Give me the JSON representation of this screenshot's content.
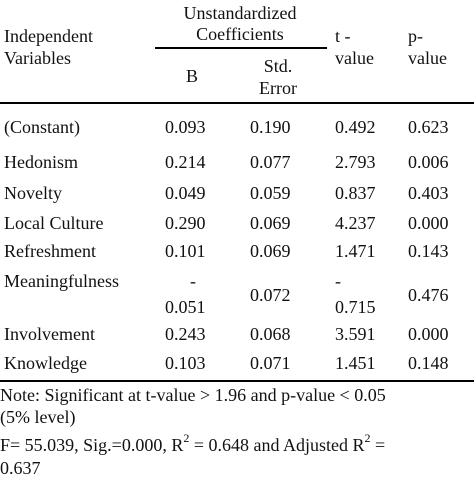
{
  "header": {
    "independent_variables": [
      "Independent",
      "Variables"
    ],
    "unstandardized": [
      "Unstandardized",
      "Coefficients"
    ],
    "b": "B",
    "std_error": [
      "Std.",
      "Error"
    ],
    "t_value": [
      "t -",
      "value"
    ],
    "p_value": [
      "p-",
      "value"
    ]
  },
  "rows": [
    {
      "label": "(Constant)",
      "b": "0.093",
      "se": "0.190",
      "t": "0.492",
      "p": "0.623"
    },
    {
      "label": "Hedonism",
      "b": "0.214",
      "se": "0.077",
      "t": "2.793",
      "p": "0.006"
    },
    {
      "label": "Novelty",
      "b": "0.049",
      "se": "0.059",
      "t": "0.837",
      "p": "0.403"
    },
    {
      "label": "Local Culture",
      "b": "0.290",
      "se": "0.069",
      "t": "4.237",
      "p": "0.000"
    },
    {
      "label": "Refreshment",
      "b": "0.101",
      "se": "0.069",
      "t": "1.471",
      "p": "0.143"
    },
    {
      "label": "Meaningfulness",
      "b_top": "-",
      "b": "0.051",
      "se": "0.072",
      "t_top": "-",
      "t": "0.715",
      "p": "0.476"
    },
    {
      "label": "Involvement",
      "b": "0.243",
      "se": "0.068",
      "t": "3.591",
      "p": "0.000"
    },
    {
      "label": "Knowledge",
      "b": "0.103",
      "se": "0.071",
      "t": "1.451",
      "p": "0.148"
    }
  ],
  "notes": {
    "line1": "Note: Significant at t-value > 1.96 and p-value < 0.05",
    "line2": "(5% level)",
    "line3_a": "F= 55.039, Sig.=0.000, R",
    "line3_sup1": "2",
    "line3_b": " = 0.648 and Adjusted R",
    "line3_sup2": "2",
    "line3_c": " =",
    "line4": "0.637"
  }
}
